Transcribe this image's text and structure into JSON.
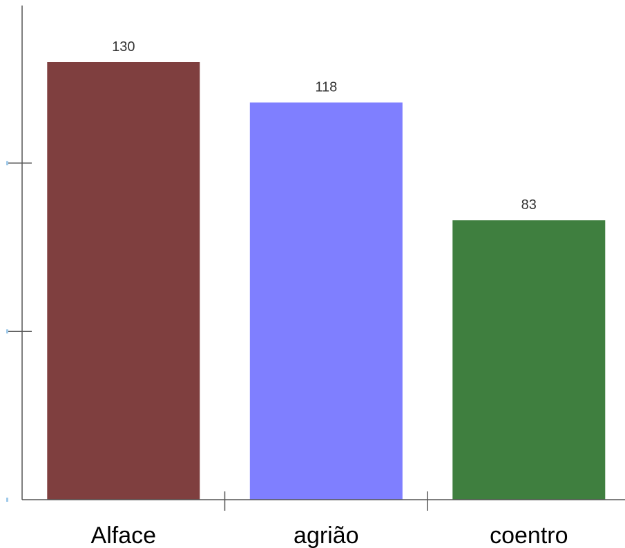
{
  "chart_data": {
    "type": "bar",
    "categories": [
      "Alface",
      "agrião",
      "coentro"
    ],
    "values": [
      130,
      118,
      83
    ],
    "colors": [
      "#7f3f3f",
      "#7f7fff",
      "#3f7f3f"
    ],
    "title": "",
    "xlabel": "",
    "ylabel": "",
    "ylim": [
      0,
      145
    ],
    "show_data_labels": true,
    "grid": false,
    "legend": "none"
  }
}
